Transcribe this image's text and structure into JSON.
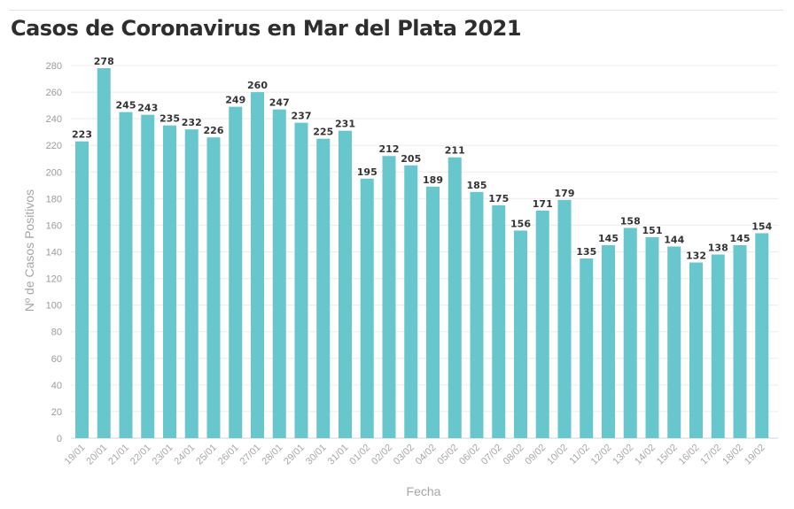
{
  "chart_data": {
    "type": "bar",
    "title": "Casos de Coronavirus en Mar del Plata 2021",
    "xlabel": "Fecha",
    "ylabel": "Nº de Casos Positivos",
    "ylim": [
      0,
      280
    ],
    "yticks": [
      0,
      20,
      40,
      60,
      80,
      100,
      120,
      140,
      160,
      180,
      200,
      220,
      240,
      260,
      280
    ],
    "grid": true,
    "bar_color": "#68c6cd",
    "categories": [
      "19/01",
      "20/01",
      "21/01",
      "22/01",
      "23/01",
      "24/01",
      "25/01",
      "26/01",
      "27/01",
      "28/01",
      "29/01",
      "30/01",
      "31/01",
      "01/02",
      "02/02",
      "03/02",
      "04/02",
      "05/02",
      "06/02",
      "07/02",
      "08/02",
      "09/02",
      "10/02",
      "11/02",
      "12/02",
      "13/02",
      "14/02",
      "15/02",
      "16/02",
      "17/02",
      "18/02",
      "19/02"
    ],
    "values": [
      223,
      278,
      245,
      243,
      235,
      232,
      226,
      249,
      260,
      247,
      237,
      225,
      231,
      195,
      212,
      205,
      189,
      211,
      185,
      175,
      156,
      171,
      179,
      135,
      145,
      158,
      151,
      144,
      132,
      138,
      145,
      154
    ]
  }
}
